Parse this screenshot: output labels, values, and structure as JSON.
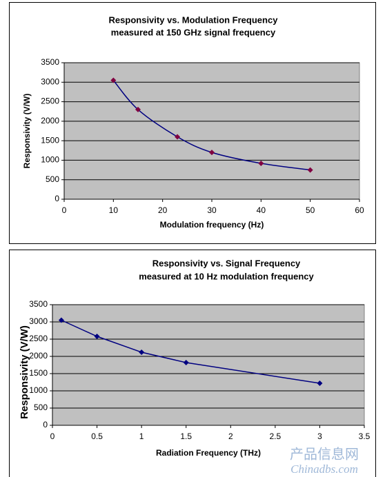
{
  "chart_data": [
    {
      "type": "line",
      "title": "Responsivity vs. Modulation Frequency",
      "subtitle": "measured at 150 GHz signal frequency",
      "x_label": "Modulation frequency (Hz)",
      "y_label": "Responsivity (V/W)",
      "x": [
        10,
        15,
        23,
        30,
        40,
        50
      ],
      "series": [
        {
          "name": "Responsivity",
          "color": "#000080",
          "marker_color": "#800040",
          "values": [
            3050,
            2300,
            1600,
            1200,
            920,
            750
          ]
        }
      ],
      "xlim": [
        0,
        60
      ],
      "xticks": [
        0,
        10,
        20,
        30,
        40,
        50,
        60
      ],
      "ylim": [
        0,
        3500
      ],
      "yticks": [
        0,
        500,
        1000,
        1500,
        2000,
        2500,
        3000,
        3500
      ],
      "grid": true,
      "smooth": true,
      "plot_background": "#c0c0c0"
    },
    {
      "type": "line",
      "title": "Responsivity vs. Signal Frequency",
      "subtitle": "measured at 10 Hz modulation frequency",
      "x_label": "Radiation Frequency (THz)",
      "y_label": "Responsivity (V/W)",
      "x": [
        0.1,
        0.5,
        1,
        1.5,
        3
      ],
      "series": [
        {
          "name": "Responsivity",
          "color": "#000080",
          "marker_color": "#000080",
          "values": [
            3050,
            2580,
            2120,
            1820,
            1220
          ]
        }
      ],
      "xlim": [
        0,
        3.5
      ],
      "xticks": [
        0,
        0.5,
        1,
        1.5,
        2,
        2.5,
        3,
        3.5
      ],
      "ylim": [
        0,
        3500
      ],
      "yticks": [
        0,
        500,
        1000,
        1500,
        2000,
        2500,
        3000,
        3500
      ],
      "grid": true,
      "smooth": false,
      "plot_background": "#c0c0c0"
    }
  ],
  "watermark": [
    "产品信息网",
    "Chinadbs.com"
  ]
}
